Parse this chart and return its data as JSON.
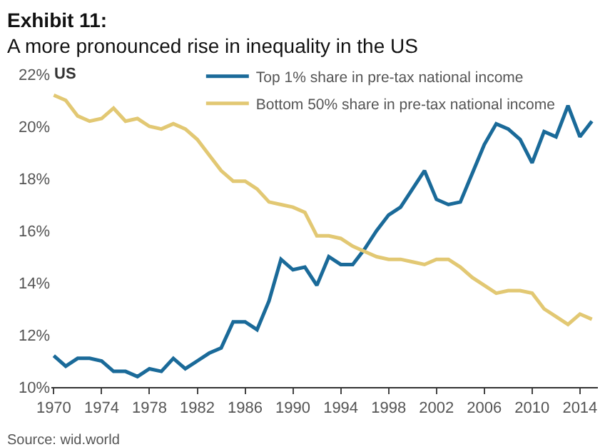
{
  "chart_data": {
    "type": "line",
    "title": "Exhibit 11:",
    "subtitle": "A more pronounced rise in inequality in the US",
    "x": [
      1970,
      1971,
      1972,
      1973,
      1974,
      1975,
      1976,
      1977,
      1978,
      1979,
      1980,
      1981,
      1982,
      1983,
      1984,
      1985,
      1986,
      1987,
      1988,
      1989,
      1990,
      1991,
      1992,
      1993,
      1994,
      1995,
      1996,
      1997,
      1998,
      1999,
      2000,
      2001,
      2002,
      2003,
      2004,
      2005,
      2006,
      2007,
      2008,
      2009,
      2010,
      2011,
      2012,
      2013,
      2014,
      2015
    ],
    "series": [
      {
        "name": "Top 1% share in pre-tax national income",
        "color": "#1a6a99",
        "values": [
          11.2,
          10.8,
          11.1,
          11.1,
          11.0,
          10.6,
          10.6,
          10.4,
          10.7,
          10.6,
          11.1,
          10.7,
          11.0,
          11.3,
          11.5,
          12.5,
          12.5,
          12.2,
          13.3,
          14.9,
          14.5,
          14.6,
          13.9,
          15.0,
          14.7,
          14.7,
          15.3,
          16.0,
          16.6,
          16.9,
          17.6,
          18.3,
          17.2,
          17.0,
          17.1,
          18.2,
          19.3,
          20.1,
          19.9,
          19.5,
          18.6,
          19.8,
          19.6,
          20.8,
          19.6,
          20.2
        ]
      },
      {
        "name": "Bottom 50% share in pre-tax national income",
        "color": "#e2c873",
        "values": [
          21.2,
          21.0,
          20.4,
          20.2,
          20.3,
          20.7,
          20.2,
          20.3,
          20.0,
          19.9,
          20.1,
          19.9,
          19.5,
          18.9,
          18.3,
          17.9,
          17.9,
          17.6,
          17.1,
          17.0,
          16.9,
          16.7,
          15.8,
          15.8,
          15.7,
          15.4,
          15.2,
          15.0,
          14.9,
          14.9,
          14.8,
          14.7,
          14.9,
          14.9,
          14.6,
          14.2,
          13.9,
          13.6,
          13.7,
          13.7,
          13.6,
          13.0,
          12.7,
          12.4,
          12.8,
          12.6
        ]
      }
    ],
    "xlim": [
      1969.8,
      2015.5
    ],
    "xticks": [
      1970,
      1974,
      1978,
      1982,
      1986,
      1990,
      1994,
      1998,
      2002,
      2006,
      2010,
      2014
    ],
    "ylim": [
      10,
      22
    ],
    "yticks": [
      {
        "value": 10,
        "label": "10%"
      },
      {
        "value": 12,
        "label": "12%"
      },
      {
        "value": 14,
        "label": "14%"
      },
      {
        "value": 16,
        "label": "16%"
      },
      {
        "value": 18,
        "label": "18%"
      },
      {
        "value": 20,
        "label": "20%"
      },
      {
        "value": 22,
        "label": "22%"
      }
    ],
    "ylabel": "US",
    "legend": "top right",
    "marker": "none",
    "line_style": "solid",
    "annotations": [
      "Source: wid.world"
    ]
  }
}
